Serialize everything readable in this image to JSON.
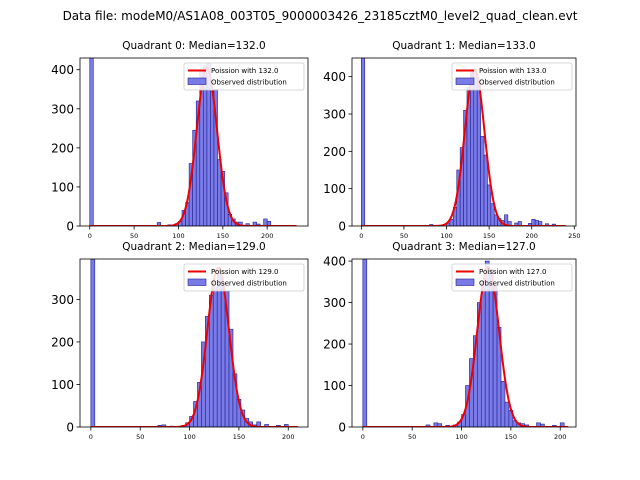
{
  "figure": {
    "suptitle": "Data file: modeM0/AS1A08_003T05_9000003426_23185cztM0_level2_quad_clean.evt"
  },
  "colors": {
    "bar_fill": "#7b7be8",
    "bar_edge": "#1f1f8f",
    "curve": "#ee0000",
    "axis": "#000000"
  },
  "chart_data": [
    {
      "type": "bar",
      "title": "Quadrant 0: Median=132.0",
      "median": 132.0,
      "xlim": [
        -11,
        246
      ],
      "ylim": [
        0,
        430
      ],
      "xticks": [
        0,
        50,
        100,
        150,
        200
      ],
      "yticks": [
        0,
        100,
        200,
        300,
        400
      ],
      "legend": {
        "placement": "top-right",
        "entries": [
          "Poission with 132.0",
          "Observed distribution"
        ]
      },
      "bin_width": 4,
      "bins": [
        {
          "x": 0,
          "h": 430
        },
        {
          "x": 76,
          "h": 9
        },
        {
          "x": 88,
          "h": 3
        },
        {
          "x": 96,
          "h": 6
        },
        {
          "x": 100,
          "h": 12
        },
        {
          "x": 104,
          "h": 40
        },
        {
          "x": 108,
          "h": 60
        },
        {
          "x": 112,
          "h": 160
        },
        {
          "x": 116,
          "h": 245
        },
        {
          "x": 120,
          "h": 320
        },
        {
          "x": 124,
          "h": 400
        },
        {
          "x": 128,
          "h": 410
        },
        {
          "x": 132,
          "h": 415
        },
        {
          "x": 136,
          "h": 345
        },
        {
          "x": 140,
          "h": 350
        },
        {
          "x": 144,
          "h": 170
        },
        {
          "x": 148,
          "h": 140
        },
        {
          "x": 152,
          "h": 85
        },
        {
          "x": 156,
          "h": 30
        },
        {
          "x": 160,
          "h": 18
        },
        {
          "x": 164,
          "h": 10
        },
        {
          "x": 168,
          "h": 10
        },
        {
          "x": 176,
          "h": 6
        },
        {
          "x": 184,
          "h": 10
        },
        {
          "x": 188,
          "h": 5
        },
        {
          "x": 196,
          "h": 18
        },
        {
          "x": 200,
          "h": 12
        }
      ],
      "curve": {
        "mean": 132.0,
        "peak": 405,
        "sigma": 11.5,
        "xmax": 233
      }
    },
    {
      "type": "bar",
      "title": "Quadrant 1: Median=133.0",
      "median": 133.0,
      "xlim": [
        -11,
        252
      ],
      "ylim": [
        0,
        450
      ],
      "xticks": [
        0,
        50,
        100,
        150,
        200,
        250
      ],
      "yticks": [
        0,
        100,
        200,
        300,
        400
      ],
      "legend": {
        "placement": "top-right",
        "entries": [
          "Poission with 133.0",
          "Observed distribution"
        ]
      },
      "bin_width": 4,
      "bins": [
        {
          "x": 0,
          "h": 450
        },
        {
          "x": 80,
          "h": 4
        },
        {
          "x": 92,
          "h": 2
        },
        {
          "x": 100,
          "h": 8
        },
        {
          "x": 104,
          "h": 18
        },
        {
          "x": 108,
          "h": 50
        },
        {
          "x": 112,
          "h": 150
        },
        {
          "x": 116,
          "h": 210
        },
        {
          "x": 120,
          "h": 310
        },
        {
          "x": 124,
          "h": 370
        },
        {
          "x": 128,
          "h": 420
        },
        {
          "x": 132,
          "h": 420
        },
        {
          "x": 136,
          "h": 380
        },
        {
          "x": 140,
          "h": 240
        },
        {
          "x": 144,
          "h": 190
        },
        {
          "x": 148,
          "h": 110
        },
        {
          "x": 152,
          "h": 60
        },
        {
          "x": 156,
          "h": 30
        },
        {
          "x": 160,
          "h": 20
        },
        {
          "x": 164,
          "h": 15
        },
        {
          "x": 168,
          "h": 30
        },
        {
          "x": 172,
          "h": 12
        },
        {
          "x": 180,
          "h": 8
        },
        {
          "x": 184,
          "h": 12
        },
        {
          "x": 196,
          "h": 7
        },
        {
          "x": 200,
          "h": 18
        },
        {
          "x": 204,
          "h": 15
        },
        {
          "x": 208,
          "h": 12
        },
        {
          "x": 216,
          "h": 6
        },
        {
          "x": 224,
          "h": 5
        }
      ],
      "curve": {
        "mean": 133.0,
        "peak": 420,
        "sigma": 11.5,
        "xmax": 240
      }
    },
    {
      "type": "bar",
      "title": "Quadrant 2: Median=129.0",
      "median": 129.0,
      "xlim": [
        -11,
        220
      ],
      "ylim": [
        0,
        395
      ],
      "xticks": [
        0,
        50,
        100,
        150,
        200
      ],
      "yticks": [
        0,
        100,
        200,
        300
      ],
      "legend": {
        "placement": "top-right",
        "entries": [
          "Poission with 129.0",
          "Observed distribution"
        ]
      },
      "bin_width": 4,
      "bins": [
        {
          "x": 0,
          "h": 395
        },
        {
          "x": 68,
          "h": 4
        },
        {
          "x": 72,
          "h": 5
        },
        {
          "x": 80,
          "h": 2
        },
        {
          "x": 92,
          "h": 4
        },
        {
          "x": 96,
          "h": 10
        },
        {
          "x": 100,
          "h": 25
        },
        {
          "x": 104,
          "h": 60
        },
        {
          "x": 108,
          "h": 105
        },
        {
          "x": 112,
          "h": 200
        },
        {
          "x": 116,
          "h": 260
        },
        {
          "x": 120,
          "h": 310
        },
        {
          "x": 124,
          "h": 330
        },
        {
          "x": 128,
          "h": 360
        },
        {
          "x": 132,
          "h": 340
        },
        {
          "x": 136,
          "h": 320
        },
        {
          "x": 140,
          "h": 230
        },
        {
          "x": 144,
          "h": 125
        },
        {
          "x": 148,
          "h": 65
        },
        {
          "x": 152,
          "h": 40
        },
        {
          "x": 156,
          "h": 20
        },
        {
          "x": 160,
          "h": 12
        },
        {
          "x": 164,
          "h": 5
        },
        {
          "x": 168,
          "h": 12
        },
        {
          "x": 176,
          "h": 6
        },
        {
          "x": 188,
          "h": 4
        },
        {
          "x": 196,
          "h": 6
        }
      ],
      "curve": {
        "mean": 129.0,
        "peak": 375,
        "sigma": 11.0,
        "xmax": 210
      }
    },
    {
      "type": "bar",
      "title": "Quadrant 3: Median=127.0",
      "median": 127.0,
      "xlim": [
        -11,
        216
      ],
      "ylim": [
        0,
        405
      ],
      "xticks": [
        0,
        50,
        100,
        150,
        200
      ],
      "yticks": [
        0,
        100,
        200,
        300,
        400
      ],
      "legend": {
        "placement": "top-right",
        "entries": [
          "Poission with 127.0",
          "Observed distribution"
        ]
      },
      "bin_width": 4,
      "bins": [
        {
          "x": 0,
          "h": 405
        },
        {
          "x": 64,
          "h": 5
        },
        {
          "x": 72,
          "h": 10
        },
        {
          "x": 76,
          "h": 8
        },
        {
          "x": 84,
          "h": 4
        },
        {
          "x": 92,
          "h": 5
        },
        {
          "x": 96,
          "h": 12
        },
        {
          "x": 100,
          "h": 30
        },
        {
          "x": 104,
          "h": 100
        },
        {
          "x": 108,
          "h": 165
        },
        {
          "x": 112,
          "h": 220
        },
        {
          "x": 116,
          "h": 300
        },
        {
          "x": 120,
          "h": 350
        },
        {
          "x": 124,
          "h": 400
        },
        {
          "x": 128,
          "h": 380
        },
        {
          "x": 132,
          "h": 340
        },
        {
          "x": 136,
          "h": 240
        },
        {
          "x": 140,
          "h": 110
        },
        {
          "x": 144,
          "h": 60
        },
        {
          "x": 148,
          "h": 40
        },
        {
          "x": 152,
          "h": 15
        },
        {
          "x": 156,
          "h": 10
        },
        {
          "x": 160,
          "h": 8
        },
        {
          "x": 164,
          "h": 5
        },
        {
          "x": 176,
          "h": 10
        },
        {
          "x": 180,
          "h": 7
        },
        {
          "x": 192,
          "h": 4
        },
        {
          "x": 200,
          "h": 10
        }
      ],
      "curve": {
        "mean": 127.0,
        "peak": 385,
        "sigma": 11.0,
        "xmax": 208
      }
    }
  ]
}
